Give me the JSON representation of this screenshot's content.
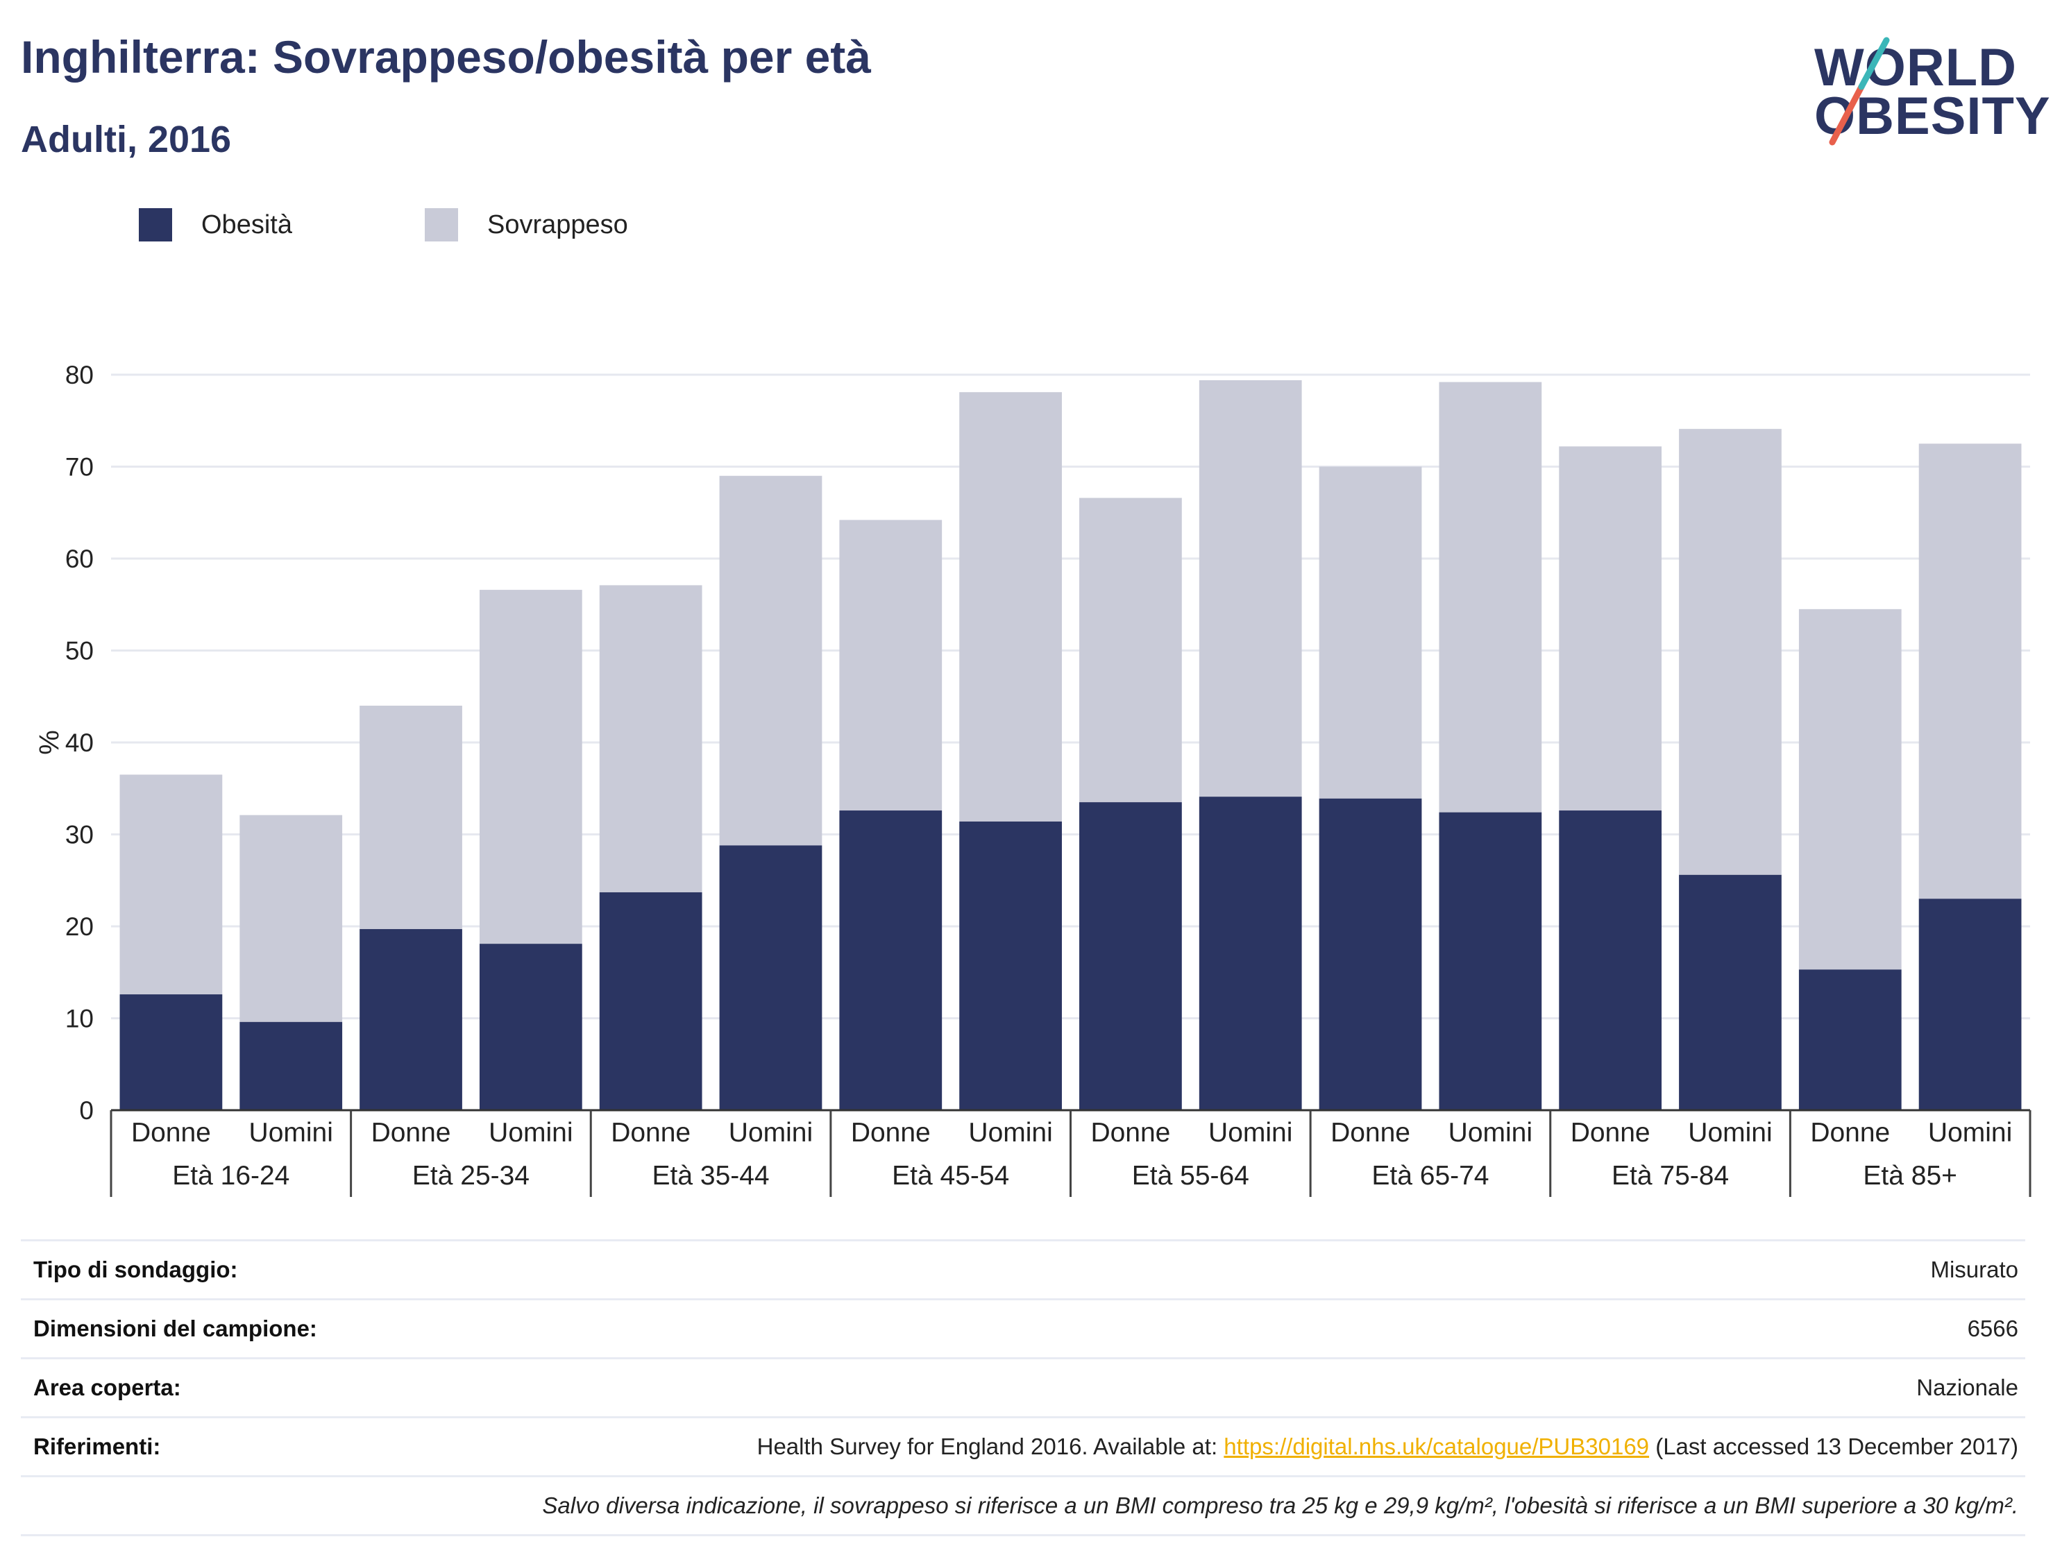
{
  "header": {
    "title": "Inghilterra: Sovrappeso/obesità per età",
    "subtitle": "Adulti, 2016"
  },
  "logo": {
    "line1": "WORLD",
    "line2": "OBESITY",
    "slash_colors": [
      "#e8604c",
      "#3bb6b8"
    ]
  },
  "legend": [
    {
      "name": "Obesità",
      "color": "#2b3562"
    },
    {
      "name": "Sovrappeso",
      "color": "#c9cbd8"
    }
  ],
  "chart_data": {
    "type": "bar",
    "stacked": true,
    "ylabel": "%",
    "ylim": [
      0,
      80
    ],
    "yticks": [
      0,
      10,
      20,
      30,
      40,
      50,
      60,
      70,
      80
    ],
    "grid": true,
    "groups": [
      "Età 16-24",
      "Età 25-34",
      "Età 35-44",
      "Età 45-54",
      "Età 55-64",
      "Età 65-74",
      "Età 75-84",
      "Età 85+"
    ],
    "sexes": [
      "Donne",
      "Uomini"
    ],
    "series": [
      {
        "name": "Obesità",
        "color": "#2b3562",
        "values": [
          12.6,
          9.6,
          19.7,
          18.1,
          23.7,
          28.8,
          32.6,
          31.4,
          33.5,
          34.1,
          33.9,
          32.4,
          32.6,
          25.6,
          15.3,
          23.0
        ]
      },
      {
        "name": "Sovrappeso",
        "color": "#c9cbd8",
        "values": [
          23.9,
          22.5,
          24.3,
          38.5,
          33.4,
          40.2,
          31.6,
          46.7,
          33.1,
          45.3,
          36.1,
          46.8,
          39.6,
          48.5,
          39.2,
          49.5
        ]
      }
    ]
  },
  "info": {
    "rows": [
      {
        "key": "Tipo di sondaggio:",
        "value": "Misurato"
      },
      {
        "key": "Dimensioni del campione:",
        "value": "6566"
      },
      {
        "key": "Area coperta:",
        "value": "Nazionale"
      }
    ],
    "references": {
      "key": "Riferimenti:",
      "prefix": "Health Survey for England 2016. Available at: ",
      "link": "https://digital.nhs.uk/catalogue/PUB30169",
      "suffix": " (Last accessed 13 December 2017)"
    },
    "note": "Salvo diversa indicazione, il sovrappeso si riferisce a un BMI compreso tra 25 kg e 29,9 kg/m², l'obesità si riferisce a un BMI superiore a 30 kg/m²."
  }
}
